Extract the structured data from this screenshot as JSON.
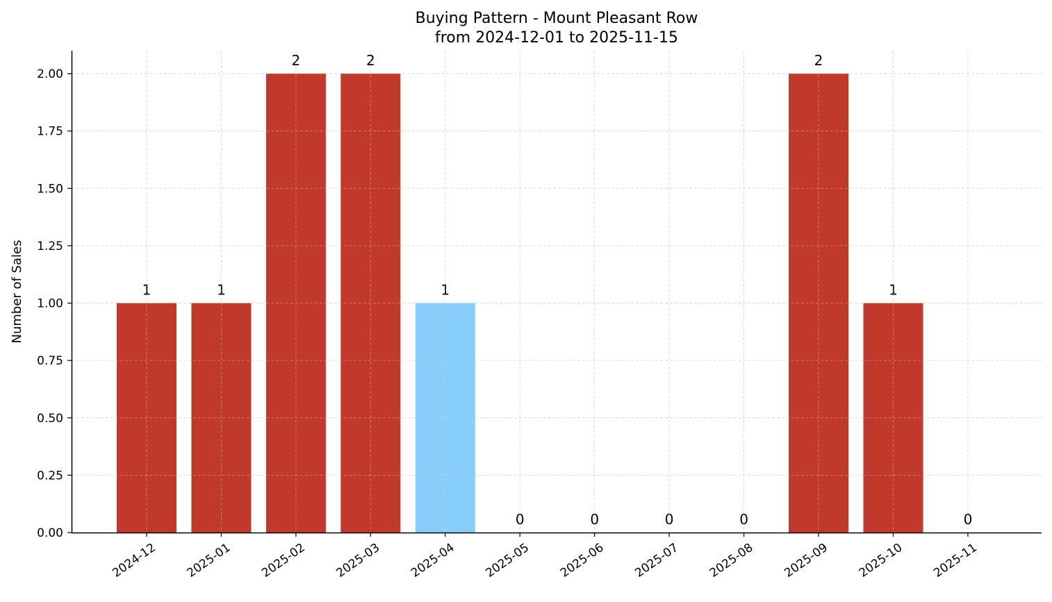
{
  "chart_data": {
    "type": "bar",
    "title": "Buying Pattern - Mount Pleasant Row",
    "subtitle": "from 2024-12-01 to 2025-11-15",
    "xlabel": "",
    "ylabel": "Number of Sales",
    "categories": [
      "2024-12",
      "2025-01",
      "2025-02",
      "2025-03",
      "2025-04",
      "2025-05",
      "2025-06",
      "2025-07",
      "2025-08",
      "2025-09",
      "2025-10",
      "2025-11"
    ],
    "values": [
      1,
      1,
      2,
      2,
      1,
      0,
      0,
      0,
      0,
      2,
      1,
      0
    ],
    "data_labels": [
      "1",
      "1",
      "2",
      "2",
      "1",
      "0",
      "0",
      "0",
      "0",
      "2",
      "1",
      "0"
    ],
    "highlighted_category": "2025-04",
    "bar_color": "#c0392b",
    "highlight_color": "#87cefa",
    "ylim": [
      0,
      2.1
    ],
    "yticks": [
      "0.00",
      "0.25",
      "0.50",
      "0.75",
      "1.00",
      "1.25",
      "1.50",
      "1.75",
      "2.00"
    ],
    "grid": true
  }
}
